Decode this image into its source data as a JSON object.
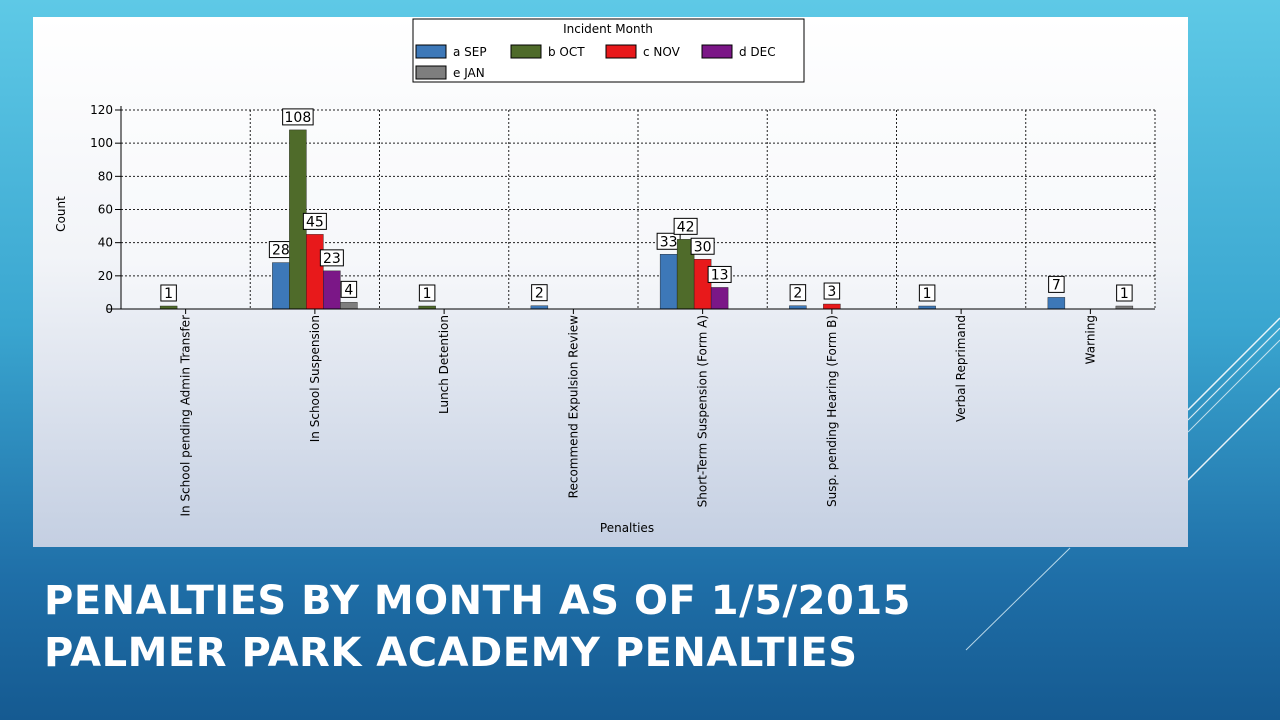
{
  "slide": {
    "title_line1": "PENALTIES BY MONTH AS OF 1/5/2015",
    "title_line2": "PALMER PARK ACADEMY PENALTIES"
  },
  "colors": {
    "a SEP": "#3d78b8",
    "b OCT": "#4f6b2a",
    "c NOV": "#e8191b",
    "d DEC": "#7b1787",
    "e JAN": "#7e7e7e"
  },
  "chart_data": {
    "type": "bar",
    "legend_title": "Incident Month",
    "legend_position": "top",
    "xlabel": "Penalties",
    "ylabel": "Count",
    "ylim": [
      0,
      120
    ],
    "yticks": [
      0,
      20,
      40,
      60,
      80,
      100,
      120
    ],
    "grid": true,
    "categories": [
      "In School pending Admin Transfer",
      "In School Suspension",
      "Lunch Detention",
      "Recommend Expulsion Review",
      "Short-Term Suspension (Form A)",
      "Susp. pending Hearing (Form B)",
      "Verbal Reprimand",
      "Warning"
    ],
    "series": [
      {
        "name": "a SEP",
        "values": [
          null,
          28,
          null,
          2,
          33,
          2,
          1,
          7
        ]
      },
      {
        "name": "b OCT",
        "values": [
          1,
          108,
          1,
          null,
          42,
          null,
          null,
          null
        ]
      },
      {
        "name": "c NOV",
        "values": [
          null,
          45,
          null,
          null,
          30,
          3,
          null,
          null
        ]
      },
      {
        "name": "d DEC",
        "values": [
          null,
          23,
          null,
          null,
          13,
          null,
          null,
          null
        ]
      },
      {
        "name": "e JAN",
        "values": [
          null,
          4,
          null,
          null,
          null,
          null,
          null,
          1
        ]
      }
    ]
  }
}
